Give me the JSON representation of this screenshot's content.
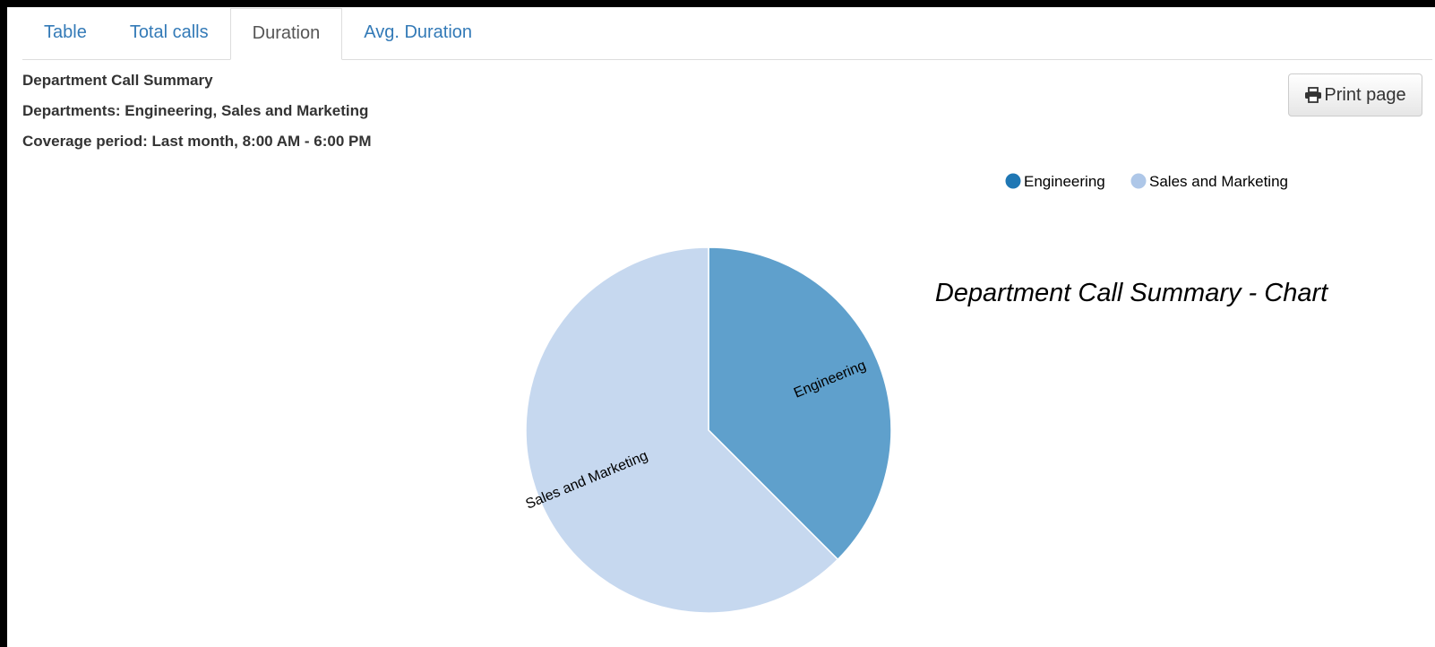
{
  "tabs": [
    {
      "label": "Table",
      "active": false
    },
    {
      "label": "Total calls",
      "active": false
    },
    {
      "label": "Duration",
      "active": true
    },
    {
      "label": "Avg. Duration",
      "active": false
    }
  ],
  "report": {
    "title": "Department Call Summary",
    "departments": "Departments: Engineering, Sales and Marketing",
    "coverage": "Coverage period: Last month, 8:00 AM - 6:00 PM"
  },
  "print_button": {
    "label": "Print page",
    "icon": "printer-icon"
  },
  "colors": {
    "engineering_legend": "#1f77b4",
    "sales_legend": "#aec7e8",
    "engineering_slice": "#5fa0cc",
    "sales_slice": "#c6d8ef",
    "link": "#337ab7"
  },
  "chart_data": {
    "type": "pie",
    "title": "Department Call Summary - Chart",
    "legend_position": "top-right",
    "categories": [
      "Engineering",
      "Sales and Marketing"
    ],
    "values": [
      37.5,
      62.5
    ],
    "slice_labels": [
      "Engineering",
      "Sales and Marketing"
    ]
  }
}
